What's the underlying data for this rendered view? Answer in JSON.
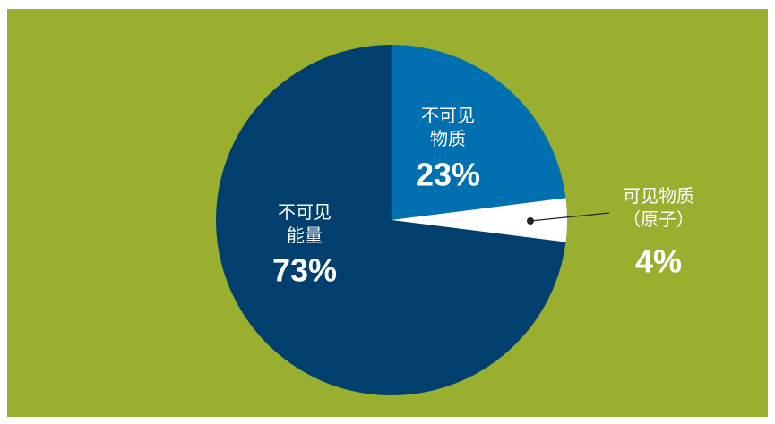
{
  "chart_data": {
    "type": "pie",
    "categories": [
      "不可见\n物质",
      "可见物质\n（原子）",
      "不可见\n能量"
    ],
    "values": [
      23,
      4,
      73
    ],
    "value_labels": [
      "23%",
      "4%",
      "73%"
    ],
    "colors": [
      "#0070b0",
      "#ffffff",
      "#003f6e"
    ]
  }
}
